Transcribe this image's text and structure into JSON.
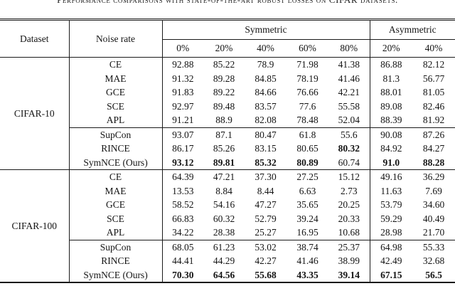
{
  "caption": "Performance comparisons with state-of-the-art robust losses on CIFAR datasets.",
  "table": {
    "headers": {
      "dataset": "Dataset",
      "noise_rate": "Noise rate",
      "symmetric": "Symmetric",
      "asymmetric": "Asymmetric",
      "symmetric_rates": [
        "0%",
        "20%",
        "40%",
        "60%",
        "80%"
      ],
      "asymmetric_rates": [
        "20%",
        "40%"
      ]
    },
    "sections": [
      {
        "dataset": "CIFAR-10",
        "groups": [
          {
            "rows": [
              {
                "method": "CE",
                "values": [
                  "92.88",
                  "85.22",
                  "78.9",
                  "71.98",
                  "41.38",
                  "86.88",
                  "82.12"
                ],
                "bold": []
              },
              {
                "method": "MAE",
                "values": [
                  "91.32",
                  "89.28",
                  "84.85",
                  "78.19",
                  "41.46",
                  "81.3",
                  "56.77"
                ],
                "bold": []
              },
              {
                "method": "GCE",
                "values": [
                  "91.83",
                  "89.22",
                  "84.66",
                  "76.66",
                  "42.21",
                  "88.01",
                  "81.05"
                ],
                "bold": []
              },
              {
                "method": "SCE",
                "values": [
                  "92.97",
                  "89.48",
                  "83.57",
                  "77.6",
                  "55.58",
                  "89.08",
                  "82.46"
                ],
                "bold": []
              },
              {
                "method": "APL",
                "values": [
                  "91.21",
                  "88.9",
                  "82.08",
                  "78.48",
                  "52.04",
                  "88.39",
                  "81.92"
                ],
                "bold": []
              }
            ]
          },
          {
            "rows": [
              {
                "method": "SupCon",
                "values": [
                  "93.07",
                  "87.1",
                  "80.47",
                  "61.8",
                  "55.6",
                  "90.08",
                  "87.26"
                ],
                "bold": []
              },
              {
                "method": "RINCE",
                "values": [
                  "86.17",
                  "85.26",
                  "83.15",
                  "80.65",
                  "80.32",
                  "84.92",
                  "84.27"
                ],
                "bold": [
                  4
                ]
              },
              {
                "method": "SymNCE (Ours)",
                "values": [
                  "93.12",
                  "89.81",
                  "85.32",
                  "80.89",
                  "60.74",
                  "91.0",
                  "88.28"
                ],
                "bold": [
                  0,
                  1,
                  2,
                  3,
                  5,
                  6
                ]
              }
            ]
          }
        ]
      },
      {
        "dataset": "CIFAR-100",
        "groups": [
          {
            "rows": [
              {
                "method": "CE",
                "values": [
                  "64.39",
                  "47.21",
                  "37.30",
                  "27.25",
                  "15.12",
                  "49.16",
                  "36.29"
                ],
                "bold": []
              },
              {
                "method": "MAE",
                "values": [
                  "13.53",
                  "8.84",
                  "8.44",
                  "6.63",
                  "2.73",
                  "11.63",
                  "7.69"
                ],
                "bold": []
              },
              {
                "method": "GCE",
                "values": [
                  "58.52",
                  "54.16",
                  "47.27",
                  "35.65",
                  "20.25",
                  "53.79",
                  "34.60"
                ],
                "bold": []
              },
              {
                "method": "SCE",
                "values": [
                  "66.83",
                  "60.32",
                  "52.79",
                  "39.24",
                  "20.33",
                  "59.29",
                  "40.49"
                ],
                "bold": []
              },
              {
                "method": "APL",
                "values": [
                  "34.22",
                  "28.38",
                  "25.27",
                  "16.95",
                  "10.68",
                  "28.98",
                  "21.70"
                ],
                "bold": []
              }
            ]
          },
          {
            "rows": [
              {
                "method": "SupCon",
                "values": [
                  "68.05",
                  "61.23",
                  "53.02",
                  "38.74",
                  "25.37",
                  "64.98",
                  "55.33"
                ],
                "bold": []
              },
              {
                "method": "RINCE",
                "values": [
                  "44.41",
                  "44.29",
                  "42.27",
                  "41.46",
                  "38.99",
                  "42.49",
                  "32.68"
                ],
                "bold": []
              },
              {
                "method": "SymNCE (Ours)",
                "values": [
                  "70.30",
                  "64.56",
                  "55.68",
                  "43.35",
                  "39.14",
                  "67.15",
                  "56.5"
                ],
                "bold": [
                  0,
                  1,
                  2,
                  3,
                  4,
                  5,
                  6
                ]
              }
            ]
          }
        ]
      }
    ]
  }
}
